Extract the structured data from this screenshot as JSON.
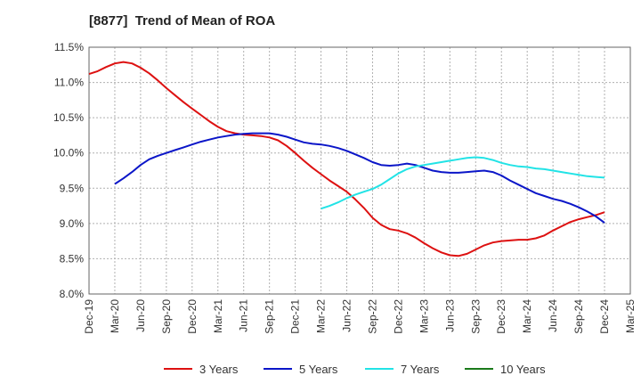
{
  "chart_data": {
    "type": "line",
    "title": "[8877]  Trend of Mean of ROA",
    "xlabel": "",
    "ylabel": "",
    "ylim": [
      8.0,
      11.5
    ],
    "y_ticks": [
      "8.0%",
      "8.5%",
      "9.0%",
      "9.5%",
      "10.0%",
      "10.5%",
      "11.0%",
      "11.5%"
    ],
    "x_ticks": [
      "Dec-19",
      "Mar-20",
      "Jun-20",
      "Sep-20",
      "Dec-20",
      "Mar-21",
      "Jun-21",
      "Sep-21",
      "Dec-21",
      "Mar-22",
      "Jun-22",
      "Sep-22",
      "Dec-22",
      "Mar-23",
      "Jun-23",
      "Sep-23",
      "Dec-23",
      "Mar-24",
      "Jun-24",
      "Sep-24",
      "Dec-24",
      "Mar-25"
    ],
    "grid": true,
    "legend_position": "bottom",
    "series": [
      {
        "name": "3 Years",
        "color": "#dd1111",
        "x": [
          "Dec-19",
          "Jan-20",
          "Feb-20",
          "Mar-20",
          "Apr-20",
          "May-20",
          "Jun-20",
          "Jul-20",
          "Aug-20",
          "Sep-20",
          "Oct-20",
          "Nov-20",
          "Dec-20",
          "Jan-21",
          "Feb-21",
          "Mar-21",
          "Apr-21",
          "May-21",
          "Jun-21",
          "Jul-21",
          "Aug-21",
          "Sep-21",
          "Oct-21",
          "Nov-21",
          "Dec-21",
          "Jan-22",
          "Feb-22",
          "Mar-22",
          "Apr-22",
          "May-22",
          "Jun-22",
          "Jul-22",
          "Aug-22",
          "Sep-22",
          "Oct-22",
          "Nov-22",
          "Dec-22",
          "Jan-23",
          "Feb-23",
          "Mar-23",
          "Apr-23",
          "May-23",
          "Jun-23",
          "Jul-23",
          "Aug-23",
          "Sep-23",
          "Oct-23",
          "Nov-23",
          "Dec-23",
          "Jan-24",
          "Feb-24",
          "Mar-24",
          "Apr-24",
          "May-24",
          "Jun-24",
          "Jul-24",
          "Aug-24",
          "Sep-24",
          "Oct-24",
          "Nov-24",
          "Dec-24"
        ],
        "values": [
          11.12,
          11.16,
          11.22,
          11.27,
          11.29,
          11.27,
          11.21,
          11.13,
          11.03,
          10.92,
          10.82,
          10.72,
          10.63,
          10.54,
          10.45,
          10.37,
          10.31,
          10.28,
          10.26,
          10.25,
          10.24,
          10.22,
          10.18,
          10.1,
          10.0,
          9.89,
          9.79,
          9.7,
          9.61,
          9.53,
          9.45,
          9.34,
          9.22,
          9.08,
          8.98,
          8.92,
          8.9,
          8.86,
          8.8,
          8.72,
          8.65,
          8.59,
          8.55,
          8.54,
          8.57,
          8.63,
          8.69,
          8.73,
          8.75,
          8.76,
          8.77,
          8.77,
          8.79,
          8.83,
          8.9,
          8.96,
          9.02,
          9.06,
          9.09,
          9.12,
          9.16
        ]
      },
      {
        "name": "5 Years",
        "color": "#0b16c8",
        "x": [
          "Mar-20",
          "Apr-20",
          "May-20",
          "Jun-20",
          "Jul-20",
          "Aug-20",
          "Sep-20",
          "Oct-20",
          "Nov-20",
          "Dec-20",
          "Jan-21",
          "Feb-21",
          "Mar-21",
          "Apr-21",
          "May-21",
          "Jun-21",
          "Jul-21",
          "Aug-21",
          "Sep-21",
          "Oct-21",
          "Nov-21",
          "Dec-21",
          "Jan-22",
          "Feb-22",
          "Mar-22",
          "Apr-22",
          "May-22",
          "Jun-22",
          "Jul-22",
          "Aug-22",
          "Sep-22",
          "Oct-22",
          "Nov-22",
          "Dec-22",
          "Jan-23",
          "Feb-23",
          "Mar-23",
          "Apr-23",
          "May-23",
          "Jun-23",
          "Jul-23",
          "Aug-23",
          "Sep-23",
          "Oct-23",
          "Nov-23",
          "Dec-23",
          "Jan-24",
          "Feb-24",
          "Mar-24",
          "Apr-24",
          "May-24",
          "Jun-24",
          "Jul-24",
          "Aug-24",
          "Sep-24",
          "Oct-24",
          "Nov-24",
          "Dec-24"
        ],
        "values": [
          9.56,
          9.64,
          9.73,
          9.83,
          9.91,
          9.96,
          10.0,
          10.04,
          10.08,
          10.12,
          10.16,
          10.19,
          10.22,
          10.24,
          10.26,
          10.27,
          10.28,
          10.28,
          10.28,
          10.26,
          10.23,
          10.19,
          10.15,
          10.13,
          10.12,
          10.1,
          10.07,
          10.03,
          9.98,
          9.93,
          9.87,
          9.83,
          9.82,
          9.83,
          9.85,
          9.83,
          9.79,
          9.75,
          9.73,
          9.72,
          9.72,
          9.73,
          9.74,
          9.75,
          9.73,
          9.68,
          9.61,
          9.55,
          9.49,
          9.43,
          9.39,
          9.35,
          9.32,
          9.28,
          9.23,
          9.17,
          9.1,
          9.01
        ]
      },
      {
        "name": "7 Years",
        "color": "#22e3e6",
        "x": [
          "Mar-22",
          "Apr-22",
          "May-22",
          "Jun-22",
          "Jul-22",
          "Aug-22",
          "Sep-22",
          "Oct-22",
          "Nov-22",
          "Dec-22",
          "Jan-23",
          "Feb-23",
          "Mar-23",
          "Apr-23",
          "May-23",
          "Jun-23",
          "Jul-23",
          "Aug-23",
          "Sep-23",
          "Oct-23",
          "Nov-23",
          "Dec-23",
          "Jan-24",
          "Feb-24",
          "Mar-24",
          "Apr-24",
          "May-24",
          "Jun-24",
          "Jul-24",
          "Aug-24",
          "Sep-24",
          "Oct-24",
          "Nov-24",
          "Dec-24"
        ],
        "values": [
          9.21,
          9.25,
          9.3,
          9.36,
          9.41,
          9.45,
          9.49,
          9.55,
          9.63,
          9.71,
          9.77,
          9.81,
          9.83,
          9.85,
          9.87,
          9.89,
          9.91,
          9.93,
          9.94,
          9.93,
          9.9,
          9.86,
          9.83,
          9.81,
          9.8,
          9.78,
          9.77,
          9.75,
          9.73,
          9.71,
          9.69,
          9.67,
          9.66,
          9.65
        ]
      },
      {
        "name": "10 Years",
        "color": "#1a7a1a",
        "x": [],
        "values": []
      }
    ]
  }
}
